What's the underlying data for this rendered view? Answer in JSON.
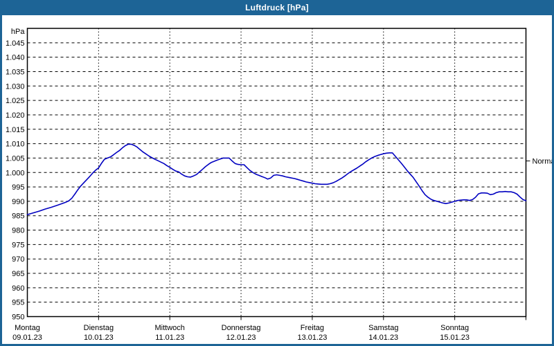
{
  "window": {
    "title": "Luftdruck [hPa]"
  },
  "chart_data": {
    "type": "line",
    "title": "Luftdruck [hPa]",
    "y_axis": {
      "unit": "hPa",
      "min": 950,
      "plot_top": 1050,
      "tick_step": 5,
      "ticks": [
        {
          "value": 1045,
          "label": "1.045"
        },
        {
          "value": 1040,
          "label": "1.040"
        },
        {
          "value": 1035,
          "label": "1.035"
        },
        {
          "value": 1030,
          "label": "1.030"
        },
        {
          "value": 1025,
          "label": "1.025"
        },
        {
          "value": 1020,
          "label": "1.020"
        },
        {
          "value": 1015,
          "label": "1.015"
        },
        {
          "value": 1010,
          "label": "1.010"
        },
        {
          "value": 1005,
          "label": "1.005"
        },
        {
          "value": 1000,
          "label": "1.000"
        },
        {
          "value": 995,
          "label": "995"
        },
        {
          "value": 990,
          "label": "990"
        },
        {
          "value": 985,
          "label": "985"
        },
        {
          "value": 980,
          "label": "980"
        },
        {
          "value": 975,
          "label": "975"
        },
        {
          "value": 970,
          "label": "970"
        },
        {
          "value": 965,
          "label": "965"
        },
        {
          "value": 960,
          "label": "960"
        },
        {
          "value": 955,
          "label": "955"
        },
        {
          "value": 950,
          "label": "950"
        }
      ]
    },
    "x_axis": {
      "hours_per_day": 24,
      "days": [
        {
          "name": "Montag",
          "date": "09.01.23"
        },
        {
          "name": "Dienstag",
          "date": "10.01.23"
        },
        {
          "name": "Mittwoch",
          "date": "11.01.23"
        },
        {
          "name": "Donnerstag",
          "date": "12.01.23"
        },
        {
          "name": "Freitag",
          "date": "13.01.23"
        },
        {
          "name": "Samstag",
          "date": "14.01.23"
        },
        {
          "name": "Sonntag",
          "date": "15.01.23"
        }
      ]
    },
    "normal_marker": {
      "label": "Normal",
      "value": 1004
    },
    "grid": {
      "horizontal": "dashed",
      "vertical": "dotted",
      "color": "#000000"
    },
    "colors": {
      "titlebar": "#1d6496",
      "frame": "#1d6496",
      "background": "#ffffff",
      "line": "#0000c0",
      "text": "#000000"
    },
    "series": [
      {
        "name": "Luftdruck",
        "color": "#0000c0",
        "points": [
          [
            0,
            985.4
          ],
          [
            2,
            986.0
          ],
          [
            4,
            986.6
          ],
          [
            6,
            987.3
          ],
          [
            8,
            987.9
          ],
          [
            10,
            988.6
          ],
          [
            12,
            989.3
          ],
          [
            13,
            989.7
          ],
          [
            14,
            990.2
          ],
          [
            15,
            991.1
          ],
          [
            16,
            992.5
          ],
          [
            17,
            994.0
          ],
          [
            18,
            995.3
          ],
          [
            19,
            996.4
          ],
          [
            20,
            997.5
          ],
          [
            21,
            998.6
          ],
          [
            22,
            999.8
          ],
          [
            23,
            1000.8
          ],
          [
            24,
            1001.6
          ],
          [
            25,
            1003.2
          ],
          [
            26,
            1004.6
          ],
          [
            27,
            1005.0
          ],
          [
            28,
            1005.4
          ],
          [
            29,
            1006.1
          ],
          [
            30,
            1006.9
          ],
          [
            31,
            1007.6
          ],
          [
            32,
            1008.5
          ],
          [
            33,
            1009.3
          ],
          [
            34,
            1009.8
          ],
          [
            35,
            1009.8
          ],
          [
            36,
            1009.4
          ],
          [
            37,
            1008.8
          ],
          [
            38,
            1007.9
          ],
          [
            39,
            1007.1
          ],
          [
            40,
            1006.4
          ],
          [
            41,
            1005.7
          ],
          [
            42,
            1005.1
          ],
          [
            43,
            1004.6
          ],
          [
            44,
            1004.1
          ],
          [
            45,
            1003.6
          ],
          [
            46,
            1003.1
          ],
          [
            47,
            1002.4
          ],
          [
            48,
            1001.8
          ],
          [
            49,
            1001.1
          ],
          [
            50,
            1000.5
          ],
          [
            51,
            1000.2
          ],
          [
            52,
            999.4
          ],
          [
            53,
            998.8
          ],
          [
            54,
            998.5
          ],
          [
            55,
            998.4
          ],
          [
            56,
            998.8
          ],
          [
            57,
            999.3
          ],
          [
            58,
            1000.2
          ],
          [
            59,
            1001.1
          ],
          [
            60,
            1002.0
          ],
          [
            61,
            1002.8
          ],
          [
            62,
            1003.5
          ],
          [
            63,
            1003.9
          ],
          [
            64,
            1004.3
          ],
          [
            65,
            1004.7
          ],
          [
            66,
            1005.0
          ],
          [
            67,
            1005.0
          ],
          [
            68,
            1005.0
          ],
          [
            69,
            1004.0
          ],
          [
            70,
            1003.1
          ],
          [
            71,
            1002.8
          ],
          [
            72,
            1002.7
          ],
          [
            73,
            1002.7
          ],
          [
            74,
            1001.7
          ],
          [
            75,
            1000.7
          ],
          [
            76,
            1000.0
          ],
          [
            77,
            999.4
          ],
          [
            78,
            999.0
          ],
          [
            79,
            998.6
          ],
          [
            80,
            998.2
          ],
          [
            81,
            997.7
          ],
          [
            82,
            998.1
          ],
          [
            83,
            999.0
          ],
          [
            84,
            999.2
          ],
          [
            85,
            999.0
          ],
          [
            86,
            998.8
          ],
          [
            87,
            998.5
          ],
          [
            88,
            998.3
          ],
          [
            89,
            998.1
          ],
          [
            90,
            997.9
          ],
          [
            91,
            997.6
          ],
          [
            92,
            997.3
          ],
          [
            93,
            997.0
          ],
          [
            94,
            996.7
          ],
          [
            95,
            996.5
          ],
          [
            96,
            996.3
          ],
          [
            97,
            996.1
          ],
          [
            98,
            996.0
          ],
          [
            99,
            995.9
          ],
          [
            100,
            995.9
          ],
          [
            101,
            995.9
          ],
          [
            102,
            996.1
          ],
          [
            103,
            996.4
          ],
          [
            104,
            996.9
          ],
          [
            105,
            997.5
          ],
          [
            106,
            998.1
          ],
          [
            107,
            998.8
          ],
          [
            108,
            999.6
          ],
          [
            109,
            1000.3
          ],
          [
            110,
            1000.9
          ],
          [
            111,
            1001.5
          ],
          [
            112,
            1002.2
          ],
          [
            113,
            1002.9
          ],
          [
            114,
            1003.7
          ],
          [
            115,
            1004.4
          ],
          [
            116,
            1005.0
          ],
          [
            117,
            1005.5
          ],
          [
            118,
            1005.9
          ],
          [
            119,
            1006.2
          ],
          [
            120,
            1006.5
          ],
          [
            121,
            1006.7
          ],
          [
            122,
            1006.8
          ],
          [
            123,
            1006.8
          ],
          [
            124,
            1005.6
          ],
          [
            125,
            1004.4
          ],
          [
            126,
            1003.2
          ],
          [
            127,
            1001.9
          ],
          [
            128,
            1000.6
          ],
          [
            129,
            999.4
          ],
          [
            130,
            998.3
          ],
          [
            131,
            996.8
          ],
          [
            132,
            995.3
          ],
          [
            133,
            993.7
          ],
          [
            134,
            992.3
          ],
          [
            135,
            991.4
          ],
          [
            136,
            990.7
          ],
          [
            137,
            990.3
          ],
          [
            138,
            990.0
          ],
          [
            139,
            989.7
          ],
          [
            140,
            989.4
          ],
          [
            141,
            989.2
          ],
          [
            142,
            989.4
          ],
          [
            143,
            989.7
          ],
          [
            144,
            990.0
          ],
          [
            145,
            990.3
          ],
          [
            146,
            990.4
          ],
          [
            147,
            990.5
          ],
          [
            148,
            990.5
          ],
          [
            149,
            990.3
          ],
          [
            150,
            990.6
          ],
          [
            151,
            991.4
          ],
          [
            152,
            992.6
          ],
          [
            153,
            992.9
          ],
          [
            154,
            992.9
          ],
          [
            155,
            992.8
          ],
          [
            156,
            992.3
          ],
          [
            157,
            992.5
          ],
          [
            158,
            993.0
          ],
          [
            159,
            993.3
          ],
          [
            160,
            993.3
          ],
          [
            161,
            993.4
          ],
          [
            162,
            993.3
          ],
          [
            163,
            993.3
          ],
          [
            164,
            993.0
          ],
          [
            165,
            992.5
          ],
          [
            166,
            991.5
          ],
          [
            167,
            990.6
          ],
          [
            168,
            990.2
          ]
        ]
      }
    ]
  }
}
